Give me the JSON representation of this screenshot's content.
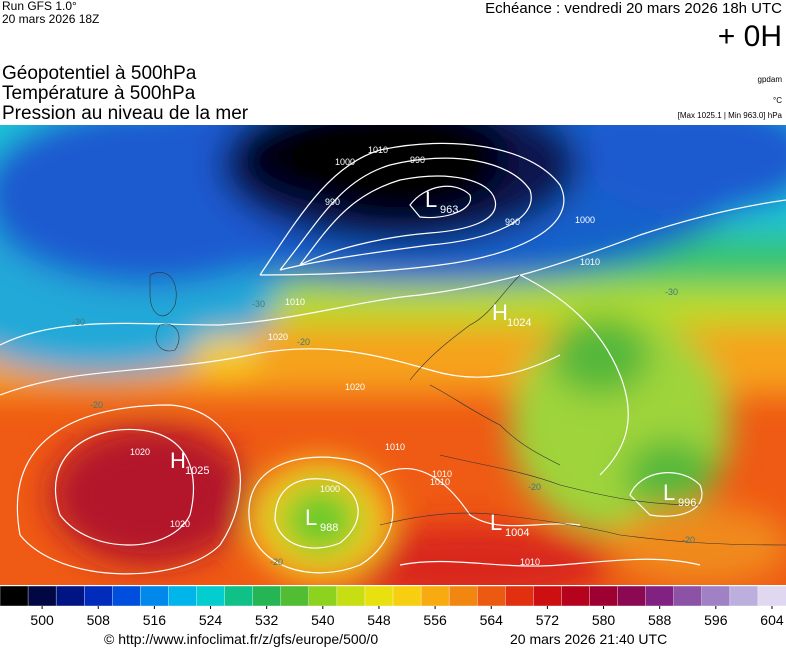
{
  "header": {
    "run": "Run GFS 1.0°",
    "run_date": "20 mars 2026 18Z",
    "echeance": "Echéance : vendredi 20 mars 2026 18h UTC",
    "offset": "+ 0H",
    "units": "gpdam",
    "temp_unit": "°C",
    "pressure_info": "[Max 1025.1 | Min 963.0] hPa"
  },
  "titles": [
    "Géopotentiel à 500hPa",
    "Température à 500hPa",
    "Pression au niveau de la mer"
  ],
  "map": {
    "centers": [
      {
        "letter": "L",
        "value": "963"
      },
      {
        "letter": "H",
        "value": "1025"
      },
      {
        "letter": "L",
        "value": "988"
      },
      {
        "letter": "L",
        "value": "1004"
      },
      {
        "letter": "L",
        "value": "996"
      },
      {
        "letter": "H",
        "value": "1024"
      }
    ],
    "contour_labels": [
      "1010",
      "1000",
      "990",
      "990",
      "990",
      "1000",
      "1010",
      "1020",
      "1020",
      "1010",
      "1010",
      "1000",
      "1010",
      "1020",
      "1020",
      "1010",
      "1010"
    ],
    "temperature_labels": [
      "-30",
      "-30",
      "-20",
      "-20",
      "-20",
      "-20",
      "-30",
      "-20"
    ]
  },
  "colorbar": {
    "range": [
      494,
      606
    ],
    "ticks": [
      500,
      508,
      516,
      524,
      532,
      540,
      548,
      556,
      564,
      572,
      580,
      588,
      596,
      604
    ]
  },
  "footer": {
    "url": "© http://www.infoclimat.fr/z/gfs/europe/500/0",
    "timestamp": "20 mars 2026 21:40 UTC"
  }
}
